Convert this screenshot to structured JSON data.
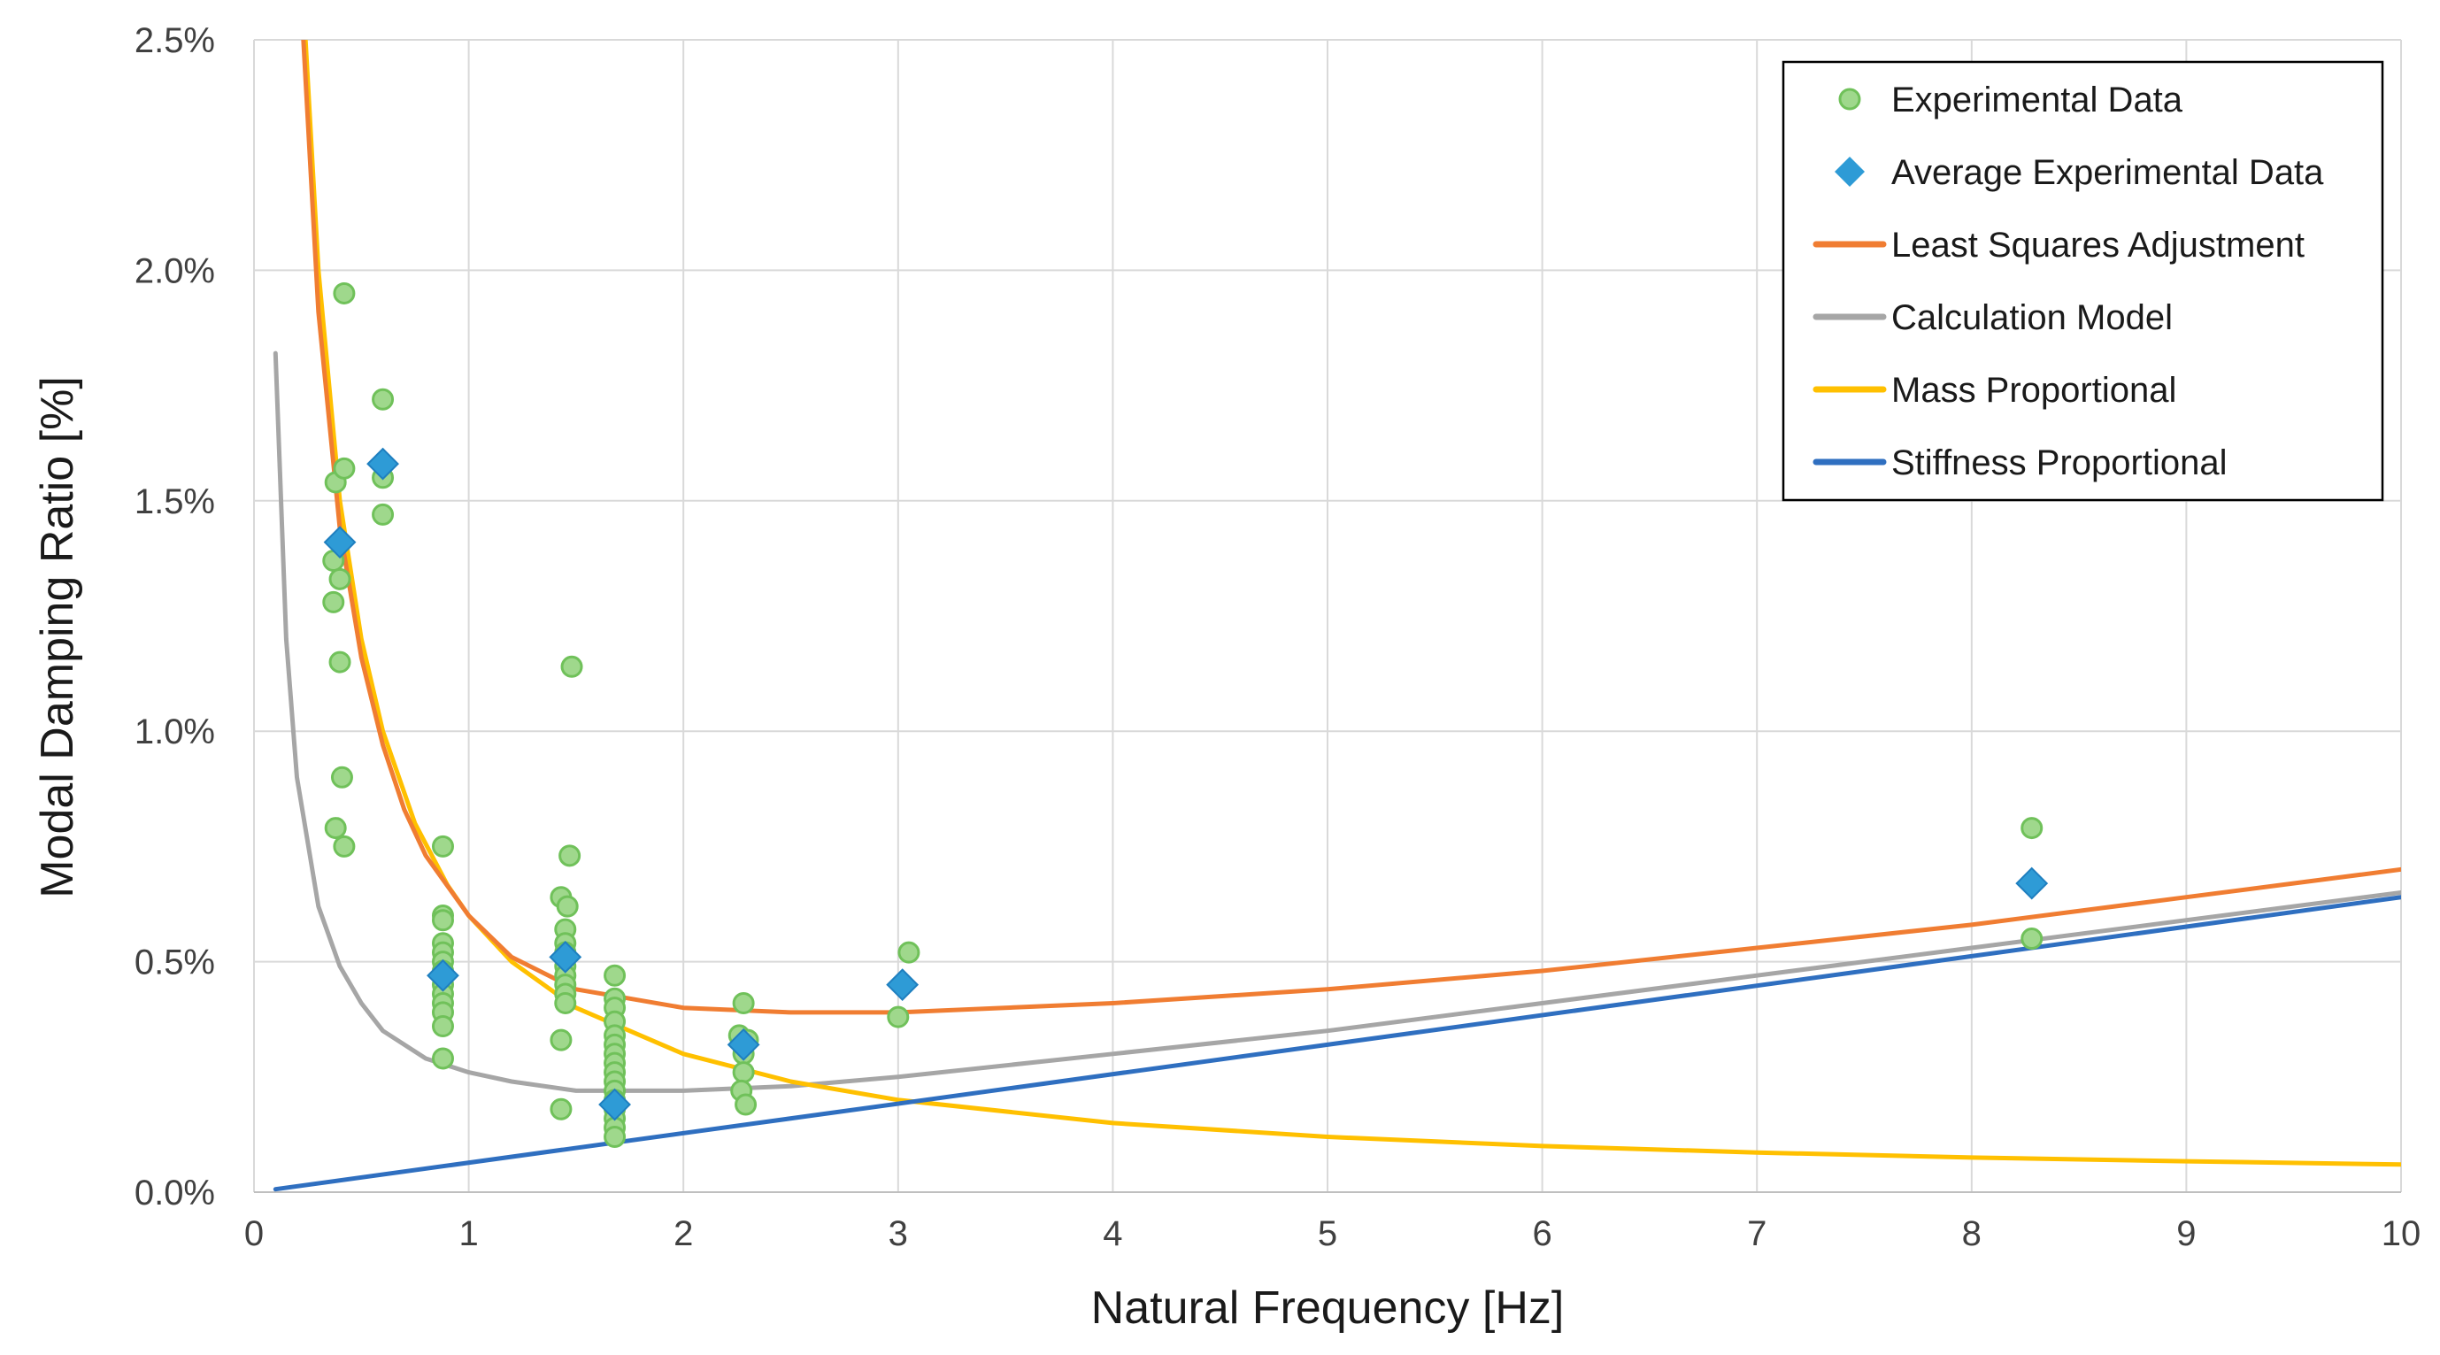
{
  "chart_data": {
    "type": "scatter",
    "title": "",
    "xlabel": "Natural Frequency [Hz]",
    "ylabel": "Modal Damping Ratio [%]",
    "xlim": [
      0,
      10
    ],
    "ylim": [
      0,
      2.5
    ],
    "x_ticks": [
      0,
      1,
      2,
      3,
      4,
      5,
      6,
      7,
      8,
      9,
      10
    ],
    "y_ticks": [
      0,
      0.5,
      1.0,
      1.5,
      2.0,
      2.5
    ],
    "y_tick_labels": [
      "0.0%",
      "0.5%",
      "1.0%",
      "1.5%",
      "2.0%",
      "2.5%"
    ],
    "grid": true,
    "legend_position": "top-right",
    "series": [
      {
        "name": "Experimental Data",
        "kind": "scatter",
        "marker": "circle",
        "color": "#70c15a",
        "points": [
          [
            0.42,
            1.95
          ],
          [
            0.38,
            1.54
          ],
          [
            0.42,
            1.57
          ],
          [
            0.37,
            1.37
          ],
          [
            0.4,
            1.33
          ],
          [
            0.37,
            1.28
          ],
          [
            0.4,
            1.15
          ],
          [
            0.41,
            0.9
          ],
          [
            0.38,
            0.79
          ],
          [
            0.42,
            0.75
          ],
          [
            0.6,
            1.72
          ],
          [
            0.6,
            1.55
          ],
          [
            0.6,
            1.47
          ],
          [
            0.88,
            0.75
          ],
          [
            0.88,
            0.6
          ],
          [
            0.88,
            0.59
          ],
          [
            0.88,
            0.54
          ],
          [
            0.88,
            0.52
          ],
          [
            0.88,
            0.5
          ],
          [
            0.88,
            0.48
          ],
          [
            0.88,
            0.45
          ],
          [
            0.88,
            0.43
          ],
          [
            0.88,
            0.41
          ],
          [
            0.88,
            0.39
          ],
          [
            0.88,
            0.36
          ],
          [
            0.88,
            0.29
          ],
          [
            1.48,
            1.14
          ],
          [
            1.47,
            0.73
          ],
          [
            1.43,
            0.64
          ],
          [
            1.46,
            0.62
          ],
          [
            1.45,
            0.57
          ],
          [
            1.45,
            0.54
          ],
          [
            1.45,
            0.52
          ],
          [
            1.45,
            0.49
          ],
          [
            1.45,
            0.47
          ],
          [
            1.45,
            0.45
          ],
          [
            1.45,
            0.43
          ],
          [
            1.45,
            0.41
          ],
          [
            1.43,
            0.33
          ],
          [
            1.43,
            0.18
          ],
          [
            1.68,
            0.47
          ],
          [
            1.68,
            0.42
          ],
          [
            1.68,
            0.4
          ],
          [
            1.68,
            0.37
          ],
          [
            1.68,
            0.34
          ],
          [
            1.68,
            0.32
          ],
          [
            1.68,
            0.3
          ],
          [
            1.68,
            0.28
          ],
          [
            1.68,
            0.26
          ],
          [
            1.68,
            0.24
          ],
          [
            1.68,
            0.22
          ],
          [
            1.68,
            0.2
          ],
          [
            1.68,
            0.18
          ],
          [
            1.68,
            0.16
          ],
          [
            1.68,
            0.14
          ],
          [
            1.68,
            0.12
          ],
          [
            2.28,
            0.41
          ],
          [
            2.26,
            0.34
          ],
          [
            2.3,
            0.33
          ],
          [
            2.28,
            0.3
          ],
          [
            2.28,
            0.26
          ],
          [
            2.27,
            0.22
          ],
          [
            2.29,
            0.19
          ],
          [
            3.05,
            0.52
          ],
          [
            3.0,
            0.38
          ],
          [
            8.28,
            0.79
          ],
          [
            8.28,
            0.55
          ]
        ]
      },
      {
        "name": "Average Experimental Data",
        "kind": "scatter",
        "marker": "diamond",
        "color": "#2e9bd6",
        "points": [
          [
            0.4,
            1.41
          ],
          [
            0.6,
            1.58
          ],
          [
            0.88,
            0.47
          ],
          [
            1.45,
            0.51
          ],
          [
            1.68,
            0.19
          ],
          [
            2.28,
            0.32
          ],
          [
            3.02,
            0.45
          ],
          [
            8.28,
            0.67
          ]
        ]
      },
      {
        "name": "Least Squares Adjustment",
        "kind": "line",
        "color": "#f07d32",
        "model": "a/(2w)+b*w/2, w=2*pi*f",
        "points": [
          [
            0.23,
            2.5
          ],
          [
            0.3,
            1.91
          ],
          [
            0.4,
            1.44
          ],
          [
            0.5,
            1.16
          ],
          [
            0.6,
            0.97
          ],
          [
            0.7,
            0.83
          ],
          [
            0.8,
            0.73
          ],
          [
            1.0,
            0.6
          ],
          [
            1.2,
            0.51
          ],
          [
            1.5,
            0.44
          ],
          [
            2.0,
            0.4
          ],
          [
            2.5,
            0.39
          ],
          [
            3.0,
            0.39
          ],
          [
            4.0,
            0.41
          ],
          [
            5.0,
            0.44
          ],
          [
            6.0,
            0.48
          ],
          [
            7.0,
            0.53
          ],
          [
            8.0,
            0.58
          ],
          [
            9.0,
            0.64
          ],
          [
            10.0,
            0.7
          ]
        ]
      },
      {
        "name": "Calculation Model",
        "kind": "line",
        "color": "#a6a6a6",
        "points": [
          [
            0.1,
            1.82
          ],
          [
            0.15,
            1.2
          ],
          [
            0.2,
            0.9
          ],
          [
            0.3,
            0.62
          ],
          [
            0.4,
            0.49
          ],
          [
            0.5,
            0.41
          ],
          [
            0.6,
            0.35
          ],
          [
            0.8,
            0.29
          ],
          [
            1.0,
            0.26
          ],
          [
            1.2,
            0.24
          ],
          [
            1.5,
            0.22
          ],
          [
            2.0,
            0.22
          ],
          [
            2.5,
            0.23
          ],
          [
            3.0,
            0.25
          ],
          [
            4.0,
            0.3
          ],
          [
            5.0,
            0.35
          ],
          [
            6.0,
            0.41
          ],
          [
            7.0,
            0.47
          ],
          [
            8.0,
            0.53
          ],
          [
            9.0,
            0.59
          ],
          [
            10.0,
            0.65
          ]
        ]
      },
      {
        "name": "Mass Proportional",
        "kind": "line",
        "color": "#ffc000",
        "model": "0.60/f",
        "points": [
          [
            0.24,
            2.5
          ],
          [
            0.3,
            2.0
          ],
          [
            0.4,
            1.5
          ],
          [
            0.5,
            1.2
          ],
          [
            0.6,
            1.0
          ],
          [
            0.75,
            0.8
          ],
          [
            0.9,
            0.667
          ],
          [
            1.0,
            0.6
          ],
          [
            1.2,
            0.5
          ],
          [
            1.5,
            0.4
          ],
          [
            2.0,
            0.3
          ],
          [
            2.5,
            0.24
          ],
          [
            3.0,
            0.2
          ],
          [
            4.0,
            0.15
          ],
          [
            5.0,
            0.12
          ],
          [
            6.0,
            0.1
          ],
          [
            7.0,
            0.086
          ],
          [
            8.0,
            0.075
          ],
          [
            9.0,
            0.067
          ],
          [
            10.0,
            0.06
          ]
        ]
      },
      {
        "name": "Stiffness Proportional",
        "kind": "line",
        "color": "#2f6fc0",
        "model": "0.064*f",
        "points": [
          [
            0.1,
            0.0064
          ],
          [
            10.0,
            0.64
          ]
        ]
      }
    ]
  },
  "legend": {
    "items": [
      {
        "label": "Experimental Data",
        "symbol": "circle",
        "color": "#70c15a"
      },
      {
        "label": "Average Experimental Data",
        "symbol": "diamond",
        "color": "#2e9bd6"
      },
      {
        "label": "Least Squares Adjustment",
        "symbol": "line",
        "color": "#f07d32"
      },
      {
        "label": "Calculation Model",
        "symbol": "line",
        "color": "#a6a6a6"
      },
      {
        "label": "Mass Proportional",
        "symbol": "line",
        "color": "#ffc000"
      },
      {
        "label": "Stiffness Proportional",
        "symbol": "line",
        "color": "#2f6fc0"
      }
    ]
  }
}
